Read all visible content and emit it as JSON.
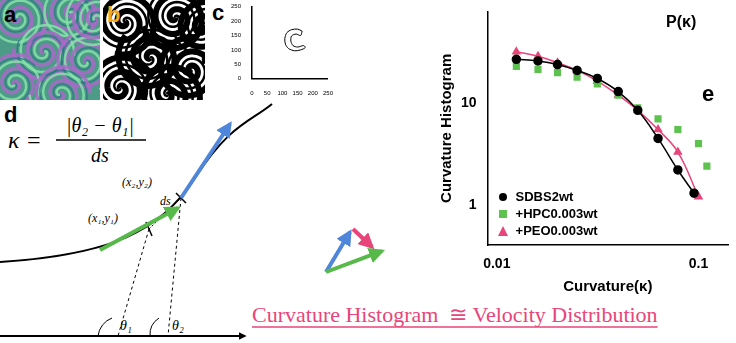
{
  "panels": [
    {
      "label": "a",
      "color": "#000000"
    },
    {
      "label": "b",
      "color": "#f5a623"
    },
    {
      "label": "d",
      "color": "#000000"
    }
  ],
  "diagram": {
    "formula": {
      "lhs": "κ =",
      "numerator": "|θ₂ − θ₁|",
      "denominator": "ds"
    },
    "point_labels": [
      "(x₁,y₁)",
      "(x₂,y₂)"
    ],
    "segment_label": "ds",
    "angle_labels": [
      "θ₁",
      "θ₂"
    ]
  },
  "caption": "Curvature Histogram  ≅ Velocity Distribution",
  "chart_data": [
    {
      "panel": "e",
      "type": "scatter",
      "xlabel": "Curvature(κ)",
      "ylabel": "Curvature Histogram",
      "annotations": [
        "P(κ)"
      ],
      "log": true,
      "xlim": [
        0.009,
        0.14
      ],
      "ylim": [
        0.4,
        80
      ],
      "xticks": [
        0.01,
        0.1
      ],
      "yticks": [
        1,
        10
      ],
      "grid": false,
      "legend": "lower left",
      "series": [
        {
          "name": "SDBS2wt",
          "color": "#000000",
          "marker": "circle",
          "line_style": "solid",
          "x": [
            0.0125,
            0.016,
            0.02,
            0.025,
            0.0315,
            0.04,
            0.05,
            0.063,
            0.079,
            0.095
          ],
          "values": [
            27,
            26,
            24,
            21,
            17.5,
            13,
            8.5,
            4.5,
            2.2,
            1.3
          ]
        },
        {
          "name": "+HPC0.003wt",
          "color": "#5dc24f",
          "marker": "square",
          "line_style": "none",
          "x": [
            0.0125,
            0.016,
            0.02,
            0.025,
            0.0315,
            0.04,
            0.05,
            0.063,
            0.079,
            0.1,
            0.11
          ],
          "values": [
            23,
            21.5,
            20,
            18,
            15.5,
            12,
            9,
            7,
            5.5,
            4,
            2.4
          ]
        },
        {
          "name": "+PEO0.003wt",
          "color": "#e8457a",
          "marker": "triangle",
          "line_style": "solid",
          "x": [
            0.0125,
            0.016,
            0.02,
            0.025,
            0.0315,
            0.04,
            0.05,
            0.063,
            0.079,
            0.1
          ],
          "values": [
            32,
            29,
            25,
            21,
            16.5,
            12,
            8.5,
            5.5,
            3.3,
            1.2
          ]
        }
      ]
    },
    {
      "panel": "c",
      "type": "line",
      "color": "#000000",
      "grid": false,
      "x": [
        165,
        150,
        130,
        115,
        108,
        110,
        120,
        140,
        160,
        175,
        170,
        150,
        135,
        128,
        130,
        145,
        160,
        165
      ],
      "values": [
        165,
        172,
        170,
        160,
        140,
        120,
        105,
        97,
        100,
        108,
        115,
        110,
        115,
        130,
        148,
        155,
        150,
        165
      ],
      "xlim": [
        0,
        250
      ],
      "ylim": [
        0,
        250
      ],
      "xticks": [
        0,
        50,
        100,
        150,
        200,
        250
      ],
      "yticks": [
        0,
        50,
        100,
        150,
        200,
        250
      ]
    }
  ]
}
